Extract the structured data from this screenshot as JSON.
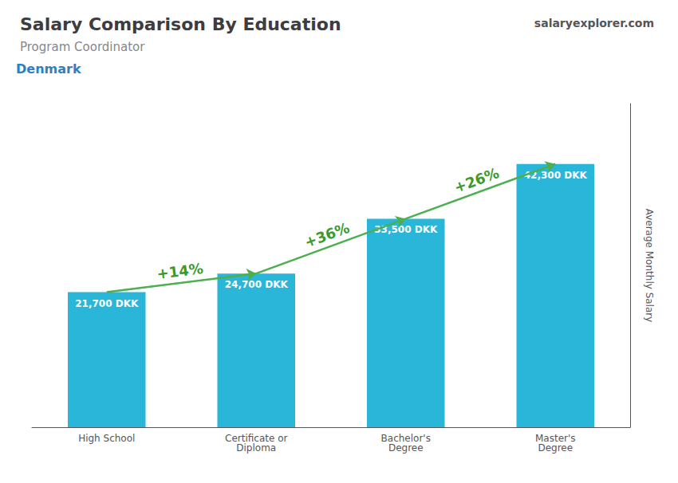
{
  "chart_data": {
    "type": "bar",
    "title": "Salary Comparison By Education",
    "subtitle": "Program Coordinator",
    "ylabel": "Average Monthly Salary",
    "categories": [
      "High School",
      "Certificate or\nDiploma",
      "Bachelor's\nDegree",
      "Master's\nDegree"
    ],
    "values": [
      21700,
      24700,
      33500,
      42300
    ],
    "value_labels": [
      "21,700 DKK",
      "24,700 DKK",
      "33,500 DKK",
      "42,300 DKK"
    ],
    "data_labels": true,
    "color": "#29b6d8",
    "ylim": [
      0,
      52000
    ],
    "tick_labels": "x",
    "grid": false,
    "annotations": [
      {
        "text": "Denmark"
      },
      {
        "text": "salaryexplorer.com"
      },
      {
        "text": "+14%",
        "from": "High School",
        "to": "Certificate or\nDiploma"
      },
      {
        "text": "+36%",
        "from": "Certificate or\nDiploma",
        "to": "Bachelor's\nDegree"
      },
      {
        "text": "+26%",
        "from": "Bachelor's\nDegree",
        "to": "Master's\nDegree"
      }
    ]
  }
}
